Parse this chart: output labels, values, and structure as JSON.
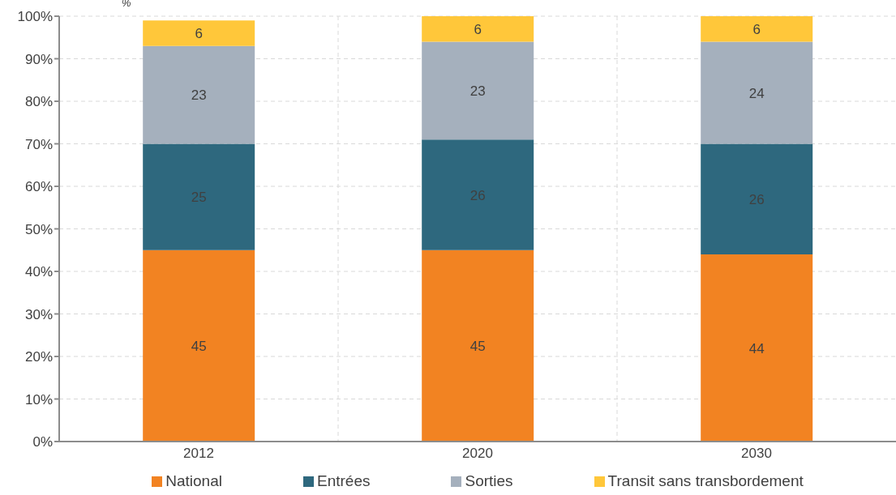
{
  "chart_data": {
    "type": "bar",
    "stacked": true,
    "ylabel": "%",
    "categories": [
      "2012",
      "2020",
      "2030"
    ],
    "series": [
      {
        "name": "National",
        "color": "#f28322",
        "values": [
          45,
          45,
          44
        ]
      },
      {
        "name": "Entrées",
        "color": "#2e687e",
        "values": [
          25,
          26,
          26
        ]
      },
      {
        "name": "Sorties",
        "color": "#a5b0bd",
        "values": [
          23,
          23,
          24
        ]
      },
      {
        "name": "Transit sans transbordement",
        "color": "#ffc73a",
        "values": [
          6,
          6,
          6
        ]
      }
    ],
    "ylim": [
      0,
      100
    ],
    "yticks": [
      {
        "value": 0,
        "label": "0%"
      },
      {
        "value": 10,
        "label": "10%"
      },
      {
        "value": 20,
        "label": "20%"
      },
      {
        "value": 30,
        "label": "30%"
      },
      {
        "value": 40,
        "label": "40%"
      },
      {
        "value": 50,
        "label": "50%"
      },
      {
        "value": 60,
        "label": "60%"
      },
      {
        "value": 70,
        "label": "70%"
      },
      {
        "value": 80,
        "label": "80%"
      },
      {
        "value": 90,
        "label": "90%"
      },
      {
        "value": 100,
        "label": "100%"
      }
    ],
    "grid": true,
    "legend": "bottom",
    "data_labels": true
  }
}
